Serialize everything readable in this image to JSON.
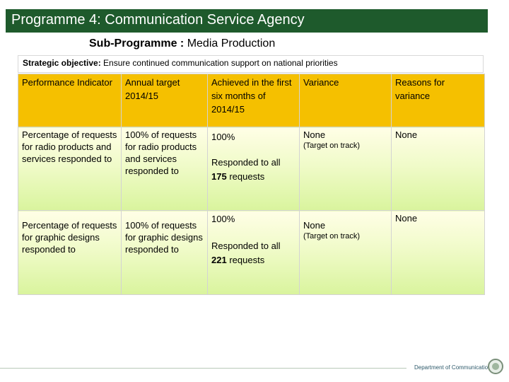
{
  "header": {
    "title": "Programme 4: Communication Service Agency",
    "sub_label": "Sub-Programme :",
    "sub_value": "Media  Production"
  },
  "objective": {
    "label": "Strategic objective:",
    "text": "Ensure continued communication support on national priorities"
  },
  "table": {
    "headers": {
      "indicator": "Performance Indicator",
      "target": "Annual target 2014/15",
      "achieved": "Achieved in the first six months of 2014/15",
      "variance": "Variance",
      "reasons": "Reasons for variance"
    },
    "rows": [
      {
        "indicator": "Percentage of requests for radio products and services responded to",
        "target": "100% of requests for radio products and services responded to",
        "achieved_pct": "100%",
        "achieved_text": "Responded to  all",
        "achieved_count": "175",
        "achieved_suffix": "requests",
        "variance": "None",
        "variance_note": "(Target on track)",
        "reasons": "None"
      },
      {
        "indicator": "Percentage of requests for graphic designs responded to",
        "target": "100% of requests for graphic designs responded to",
        "achieved_pct": "100%",
        "achieved_text": "Responded to  all",
        "achieved_count": "221",
        "achieved_suffix": "requests",
        "variance": "None",
        "variance_note": "(Target on track)",
        "reasons": "None"
      }
    ]
  },
  "footer": {
    "text": "Department of Communications",
    "logo_icon": "coat-of-arms-icon"
  },
  "colors": {
    "title_bar": "#1e5a2c",
    "header_row": "#f5c000",
    "row_bottom": "#d9f49d"
  }
}
